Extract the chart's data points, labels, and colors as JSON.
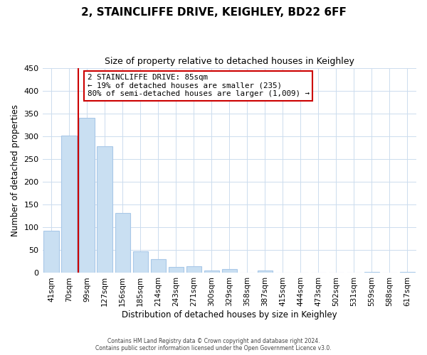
{
  "title": "2, STAINCLIFFE DRIVE, KEIGHLEY, BD22 6FF",
  "subtitle": "Size of property relative to detached houses in Keighley",
  "xlabel": "Distribution of detached houses by size in Keighley",
  "ylabel": "Number of detached properties",
  "bar_labels": [
    "41sqm",
    "70sqm",
    "99sqm",
    "127sqm",
    "156sqm",
    "185sqm",
    "214sqm",
    "243sqm",
    "271sqm",
    "300sqm",
    "329sqm",
    "358sqm",
    "387sqm",
    "415sqm",
    "444sqm",
    "473sqm",
    "502sqm",
    "531sqm",
    "559sqm",
    "588sqm",
    "617sqm"
  ],
  "bar_values": [
    92,
    302,
    340,
    278,
    131,
    47,
    31,
    13,
    15,
    5,
    9,
    0,
    5,
    0,
    0,
    0,
    0,
    0,
    2,
    0,
    2
  ],
  "bar_color": "#c9dff2",
  "bar_edge_color": "#a8c8e8",
  "ylim": [
    0,
    450
  ],
  "yticks": [
    0,
    50,
    100,
    150,
    200,
    250,
    300,
    350,
    400,
    450
  ],
  "vline_color": "#cc0000",
  "annotation_lines": [
    "2 STAINCLIFFE DRIVE: 85sqm",
    "← 19% of detached houses are smaller (235)",
    "80% of semi-detached houses are larger (1,009) →"
  ],
  "footer1": "Contains HM Land Registry data © Crown copyright and database right 2024.",
  "footer2": "Contains public sector information licensed under the Open Government Licence v3.0."
}
